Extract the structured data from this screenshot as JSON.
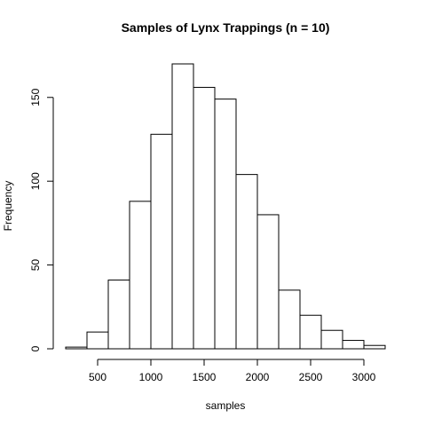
{
  "chart_data": {
    "type": "bar",
    "title": "Samples of Lynx Trappings (n = 10)",
    "xlabel": "samples",
    "ylabel": "Frequency",
    "bin_edges": [
      200,
      400,
      600,
      800,
      1000,
      1200,
      1400,
      1600,
      1800,
      2000,
      2200,
      2400,
      2600,
      2800,
      3000,
      3200
    ],
    "values": [
      1,
      10,
      41,
      88,
      128,
      170,
      156,
      149,
      104,
      80,
      35,
      20,
      11,
      5,
      2
    ],
    "x_ticks": [
      500,
      1000,
      1500,
      2000,
      2500,
      3000
    ],
    "y_ticks": [
      0,
      50,
      100,
      150
    ],
    "xlim": [
      200,
      3200
    ],
    "ylim": [
      0,
      170
    ],
    "grid": false,
    "legend": "none"
  }
}
